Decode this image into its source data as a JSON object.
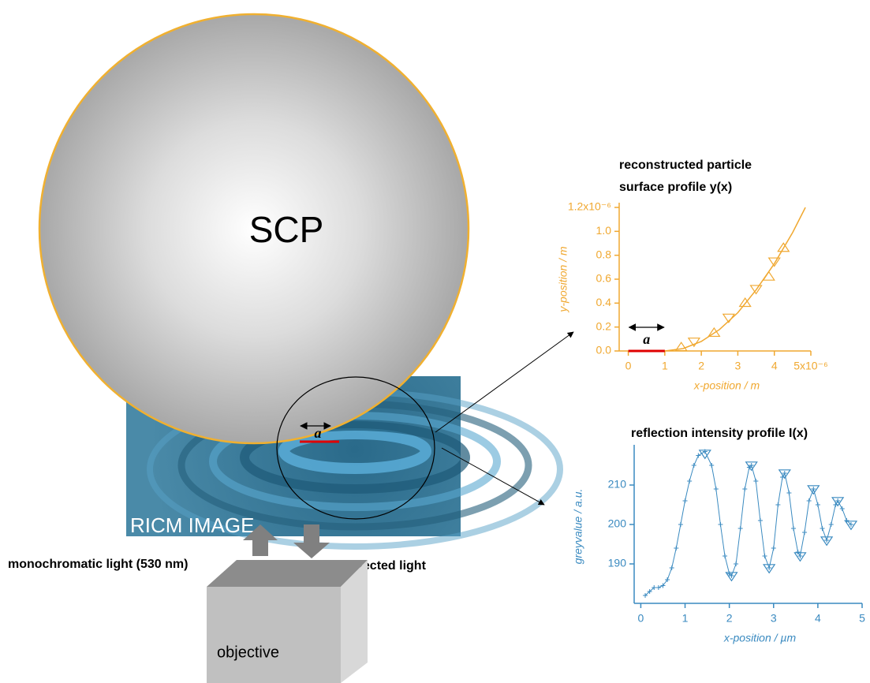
{
  "sphere_label": "SCP",
  "image_label": "RICM IMAGE",
  "contact_label": "a",
  "light_in": "monochromatic light (530 nm)",
  "light_out": "reflected light",
  "objective_label": "objective",
  "chart_data": [
    {
      "type": "scatter",
      "title": "reconstructed particle",
      "subtitle": "surface profile y(x)",
      "xlabel": "x-position / m",
      "ylabel": "y-position / m",
      "color": "#f0a830",
      "marker": "triangle",
      "annotation": "a",
      "xlim": [
        -2.5e-07,
        5e-06
      ],
      "ylim": [
        0,
        1.2e-06
      ],
      "xticks": [
        0,
        {
          "value": 1e-06,
          "label": "1"
        },
        {
          "value": 2e-06,
          "label": "2"
        },
        {
          "value": 3e-06,
          "label": "3"
        },
        {
          "value": 4e-06,
          "label": "4"
        },
        {
          "value": 5e-06,
          "label": "5x10⁻⁶"
        }
      ],
      "yticks": [
        {
          "value": 0,
          "label": "0.0"
        },
        {
          "value": 2e-07,
          "label": "0.2"
        },
        {
          "value": 4e-07,
          "label": "0.4"
        },
        {
          "value": 6e-07,
          "label": "0.6"
        },
        {
          "value": 8e-07,
          "label": "0.8"
        },
        {
          "value": 1e-06,
          "label": "1.0"
        },
        {
          "value": 1.2e-06,
          "label": "1.2x10⁻⁶"
        }
      ],
      "x": [
        1.45e-06,
        1.8e-06,
        2.35e-06,
        2.75e-06,
        3.2e-06,
        3.5e-06,
        3.85e-06,
        4e-06,
        4.25e-06
      ],
      "values": [
        3e-08,
        8e-08,
        1.5e-07,
        2.8e-07,
        4e-07,
        5.2e-07,
        6.2e-07,
        7.5e-07,
        8.6e-07
      ],
      "curve": {
        "x": [
          1e-06,
          1.5e-06,
          2e-06,
          2.5e-06,
          3e-06,
          3.5e-06,
          4e-06,
          4.5e-06,
          4.85e-06
        ],
        "values": [
          0,
          2e-08,
          8e-08,
          1.8e-07,
          3.2e-07,
          5.1e-07,
          7.3e-07,
          9.9e-07,
          1.2e-06
        ]
      },
      "contact": {
        "x": [
          0,
          1e-06
        ],
        "values": [
          0,
          0
        ],
        "color": "#e00000"
      }
    },
    {
      "type": "scatter",
      "title": "reflection intensity profile I(x)",
      "xlabel": "x-position / µm",
      "ylabel": "greyvalue / a.u.",
      "color": "#3a8ac0",
      "marker": "plus",
      "xlim": [
        -0.15,
        5
      ],
      "ylim": [
        180,
        219
      ],
      "xticks": [
        0,
        1,
        2,
        3,
        4,
        5
      ],
      "yticks": [
        190,
        200,
        210
      ],
      "x": [
        0.1,
        0.2,
        0.3,
        0.4,
        0.5,
        0.6,
        0.7,
        0.8,
        0.9,
        1.0,
        1.1,
        1.2,
        1.3,
        1.45,
        1.6,
        1.7,
        1.8,
        1.9,
        2.0,
        2.05,
        2.15,
        2.25,
        2.35,
        2.45,
        2.5,
        2.6,
        2.7,
        2.8,
        2.9,
        3.0,
        3.1,
        3.2,
        3.25,
        3.35,
        3.45,
        3.55,
        3.6,
        3.7,
        3.8,
        3.9,
        4.0,
        4.1,
        4.2,
        4.3,
        4.4,
        4.45,
        4.55,
        4.65,
        4.75
      ],
      "values": [
        182,
        183,
        184,
        184,
        184.5,
        186,
        189,
        194,
        200,
        206,
        211,
        215,
        217.5,
        218.5,
        215,
        209,
        200,
        192,
        187.5,
        187,
        190,
        199,
        209,
        214.5,
        215,
        211,
        201,
        192,
        189,
        194,
        205,
        212,
        213,
        208,
        199,
        193,
        192,
        198,
        206,
        209,
        205,
        199,
        196,
        200,
        205,
        206,
        204,
        201,
        200
      ],
      "extrema": {
        "x": [
          1.45,
          2.05,
          2.5,
          2.9,
          3.25,
          3.6,
          3.9,
          4.2,
          4.45,
          4.75
        ],
        "values": [
          218,
          187,
          215,
          189,
          213,
          192,
          209,
          196,
          206,
          200
        ]
      }
    }
  ]
}
